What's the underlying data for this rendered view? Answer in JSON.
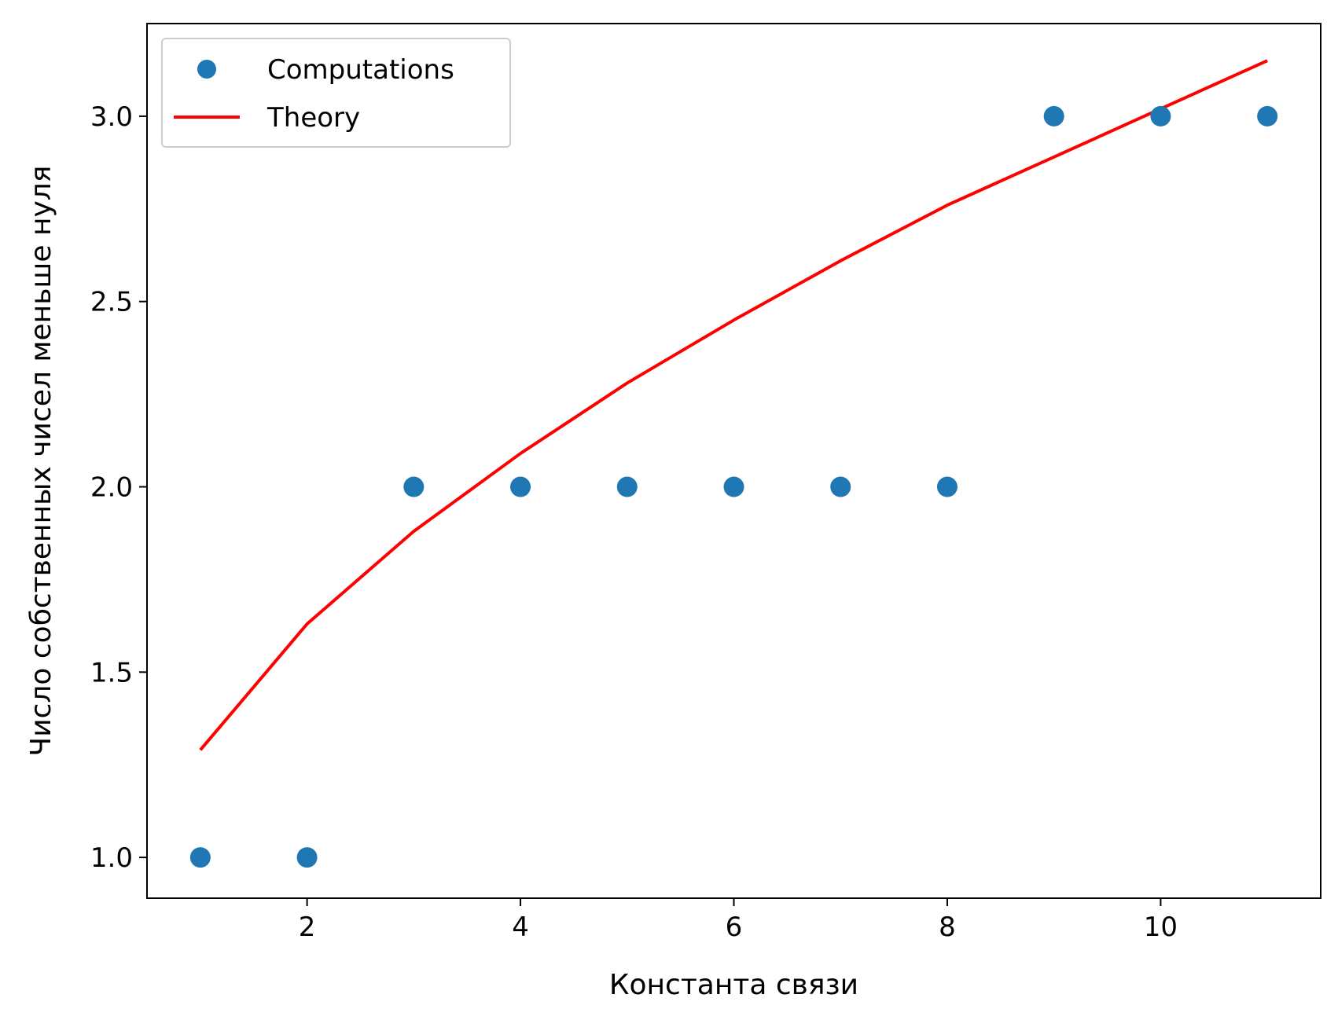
{
  "chart_data": {
    "type": "scatter",
    "xlabel": "Константа связи",
    "ylabel": "Число собственных чисел меньше нуля",
    "xlim": [
      0.5,
      11.5
    ],
    "ylim": [
      0.89,
      3.25
    ],
    "xticks": [
      2,
      4,
      6,
      8,
      10
    ],
    "xtick_labels": [
      "2",
      "4",
      "6",
      "8",
      "10"
    ],
    "yticks": [
      1.0,
      1.5,
      2.0,
      2.5,
      3.0
    ],
    "ytick_labels": [
      "1.0",
      "1.5",
      "2.0",
      "2.5",
      "3.0"
    ],
    "grid": false,
    "legend_position": "top-left",
    "series": [
      {
        "name": "Computations",
        "kind": "scatter",
        "color": "#1f77b4",
        "x": [
          1,
          2,
          3,
          4,
          5,
          6,
          7,
          8,
          9,
          10,
          11
        ],
        "y": [
          1,
          1,
          2,
          2,
          2,
          2,
          2,
          2,
          3,
          3,
          3
        ]
      },
      {
        "name": "Theory",
        "kind": "line",
        "color": "#ff0000",
        "x": [
          1,
          2,
          3,
          4,
          5,
          6,
          7,
          8,
          9,
          10,
          11
        ],
        "y": [
          1.29,
          1.63,
          1.88,
          2.09,
          2.28,
          2.45,
          2.61,
          2.76,
          2.89,
          3.02,
          3.15
        ]
      }
    ]
  }
}
